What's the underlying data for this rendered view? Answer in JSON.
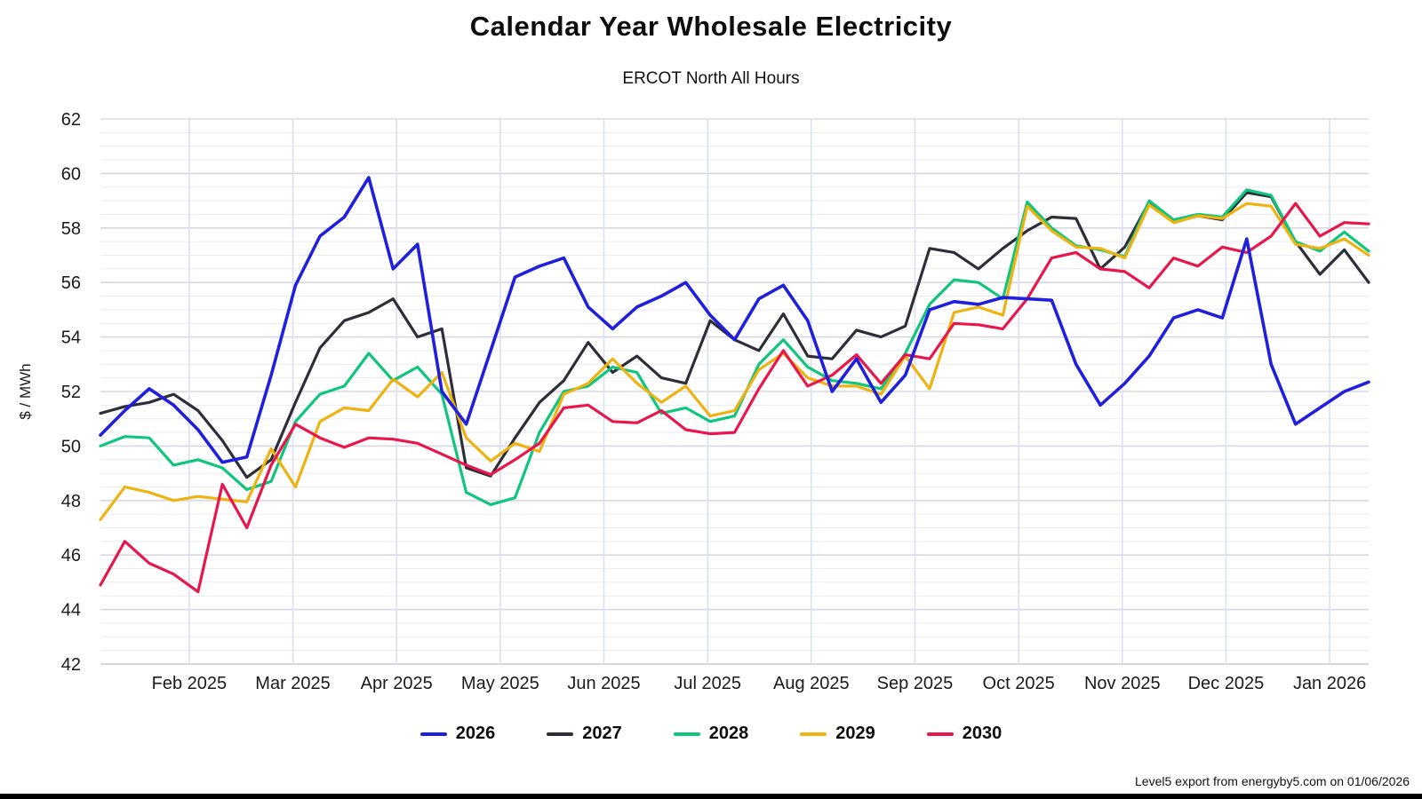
{
  "header": {
    "title": "Calendar Year Wholesale Electricity",
    "subtitle": "ERCOT North All Hours"
  },
  "footer": {
    "export_note": "Level5 export from energyby5.com on 01/06/2026"
  },
  "colors": {
    "minor_grid": "#ebebf0",
    "major_grid": "#d8d8e2",
    "vertical_grid": "#dce0ef",
    "bottom_axis": "#c3cade",
    "footer_bar": "#000000"
  },
  "chart_data": {
    "type": "line",
    "title": "Calendar Year Wholesale Electricity",
    "subtitle": "ERCOT North All Hours",
    "xlabel": "",
    "ylabel": "$ / MWh",
    "ylim": [
      42,
      62
    ],
    "ytick_step": 2,
    "minor_ytick_step": 0.5,
    "grid": true,
    "legend_position": "bottom",
    "x_tick_labels": [
      "Feb 2025",
      "Mar 2025",
      "Apr 2025",
      "May 2025",
      "Jun 2025",
      "Jul 2025",
      "Aug 2025",
      "Sep 2025",
      "Oct 2025",
      "Nov 2025",
      "Dec 2025",
      "Jan 2026"
    ],
    "x_range_note": "weekly points, Jan 2025 through Jan 2026",
    "points_per_series": 53,
    "series": [
      {
        "name": "2026",
        "color": "#1f1fdd",
        "values": [
          50.4,
          51.3,
          52.1,
          51.5,
          50.6,
          49.4,
          49.6,
          52.6,
          55.9,
          57.7,
          58.4,
          59.85,
          56.5,
          57.4,
          52.0,
          50.8,
          53.5,
          56.2,
          56.6,
          56.9,
          55.1,
          54.3,
          55.1,
          55.5,
          56.0,
          54.8,
          53.9,
          55.4,
          55.9,
          54.6,
          52.0,
          53.2,
          51.6,
          52.6,
          55.0,
          55.3,
          55.2,
          55.45,
          55.4,
          55.35,
          53.0,
          51.5,
          52.3,
          53.3,
          54.7,
          55.0,
          54.7,
          57.6,
          53.0,
          50.8,
          51.4,
          52.0,
          52.35
        ]
      },
      {
        "name": "2027",
        "color": "#2e2e38",
        "values": [
          51.2,
          51.45,
          51.6,
          51.9,
          51.3,
          50.2,
          48.85,
          49.5,
          51.6,
          53.6,
          54.6,
          54.9,
          55.4,
          54.0,
          54.3,
          49.2,
          48.9,
          50.3,
          51.6,
          52.4,
          53.8,
          52.7,
          53.3,
          52.5,
          52.3,
          54.6,
          53.9,
          53.5,
          54.85,
          53.3,
          53.2,
          54.25,
          54.0,
          54.4,
          57.25,
          57.1,
          56.5,
          57.25,
          57.9,
          58.4,
          58.35,
          56.5,
          57.3,
          58.95,
          58.2,
          58.45,
          58.3,
          59.3,
          59.15,
          57.5,
          56.3,
          57.2,
          56.0
        ]
      },
      {
        "name": "2028",
        "color": "#10c57d",
        "values": [
          50.0,
          50.35,
          50.3,
          49.3,
          49.5,
          49.2,
          48.4,
          48.7,
          50.9,
          51.9,
          52.2,
          53.4,
          52.4,
          52.9,
          51.9,
          48.3,
          47.85,
          48.1,
          50.5,
          52.0,
          52.2,
          52.9,
          52.7,
          51.2,
          51.4,
          50.9,
          51.1,
          53.0,
          53.9,
          52.9,
          52.4,
          52.3,
          52.1,
          53.4,
          55.2,
          56.1,
          56.0,
          55.4,
          58.95,
          58.0,
          57.35,
          57.2,
          56.95,
          59.0,
          58.3,
          58.5,
          58.4,
          59.4,
          59.2,
          57.5,
          57.15,
          57.85,
          57.15
        ]
      },
      {
        "name": "2029",
        "color": "#eeb211",
        "values": [
          47.3,
          48.5,
          48.3,
          48.0,
          48.15,
          48.05,
          47.95,
          49.9,
          48.5,
          50.9,
          51.4,
          51.3,
          52.45,
          51.8,
          52.7,
          50.3,
          49.45,
          50.1,
          49.8,
          51.9,
          52.3,
          53.2,
          52.3,
          51.6,
          52.2,
          51.1,
          51.3,
          52.8,
          53.4,
          52.5,
          52.2,
          52.2,
          51.9,
          53.3,
          52.1,
          54.9,
          55.1,
          54.8,
          58.8,
          57.9,
          57.3,
          57.25,
          56.9,
          58.85,
          58.2,
          58.45,
          58.35,
          58.9,
          58.8,
          57.4,
          57.25,
          57.6,
          57.0
        ]
      },
      {
        "name": "2030",
        "color": "#e8174b",
        "values": [
          44.9,
          46.5,
          45.7,
          45.3,
          44.65,
          48.6,
          47.0,
          49.3,
          50.8,
          50.3,
          49.95,
          50.3,
          50.25,
          50.1,
          49.7,
          49.3,
          48.95,
          49.5,
          50.1,
          51.4,
          51.5,
          50.9,
          50.85,
          51.3,
          50.6,
          50.45,
          50.5,
          52.1,
          53.5,
          52.2,
          52.6,
          53.35,
          52.3,
          53.35,
          53.2,
          54.5,
          54.45,
          54.3,
          55.4,
          56.9,
          57.1,
          56.5,
          56.4,
          55.8,
          56.9,
          56.6,
          57.3,
          57.1,
          57.7,
          58.9,
          57.7,
          58.2,
          58.15
        ]
      }
    ]
  }
}
